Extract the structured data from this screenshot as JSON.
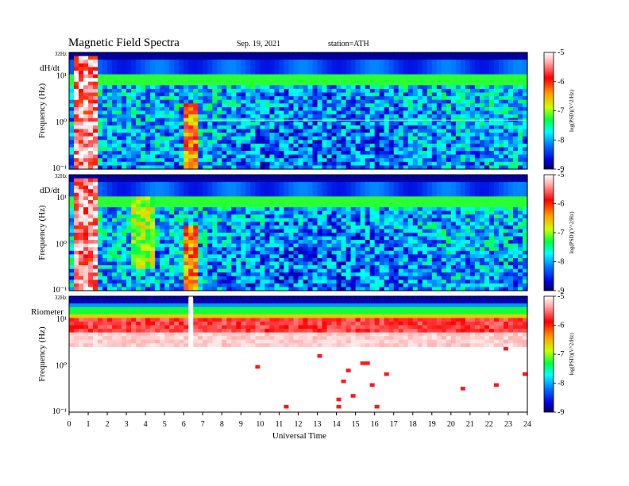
{
  "header": {
    "title": "Magnetic  Field  Spectra",
    "date": "Sep. 19, 2021",
    "station": "station=ATH"
  },
  "chart_data": [
    {
      "type": "heatmap",
      "panel_label": "dH/dt",
      "ylabel": "Frequency  (Hz)",
      "y_scale": "log",
      "y_tick_labels": [
        "32Hz",
        "10¹",
        "10⁰",
        "10⁻¹"
      ],
      "xlim": [
        0,
        24
      ],
      "color_scale": {
        "label": "log(PSD)(V^2/Hz)",
        "range": [
          -9,
          -5
        ],
        "ticks": [
          "-5",
          "-6",
          "-7",
          "-8",
          "-9"
        ]
      }
    },
    {
      "type": "heatmap",
      "panel_label": "dD/dt",
      "ylabel": "Frequency  (Hz)",
      "y_scale": "log",
      "y_tick_labels": [
        "32Hz",
        "10¹",
        "10⁰",
        "10⁻¹"
      ],
      "xlim": [
        0,
        24
      ],
      "color_scale": {
        "label": "log(PSD)(V^2/Hz)",
        "range": [
          -9,
          -5
        ],
        "ticks": [
          "-5",
          "-6",
          "-7",
          "-8",
          "-9"
        ]
      }
    },
    {
      "type": "heatmap",
      "panel_label": "Riometer",
      "ylabel": "Frequency  (Hz)",
      "y_scale": "log",
      "y_tick_labels": [
        "32Hz",
        "10¹",
        "10⁰",
        "10⁻¹"
      ],
      "xlim": [
        0,
        24
      ],
      "color_scale": {
        "label": "log(PSD)(V^2/Hz)",
        "range": [
          -9,
          -5
        ],
        "ticks": [
          "-5",
          "-6",
          "-7",
          "-8",
          "-9"
        ]
      }
    }
  ],
  "x_axis": {
    "label": "Universal Time",
    "ticks": [
      "0",
      "1",
      "2",
      "3",
      "4",
      "5",
      "6",
      "7",
      "8",
      "9",
      "10",
      "11",
      "12",
      "13",
      "14",
      "15",
      "16",
      "17",
      "18",
      "19",
      "20",
      "21",
      "22",
      "23",
      "24"
    ]
  }
}
